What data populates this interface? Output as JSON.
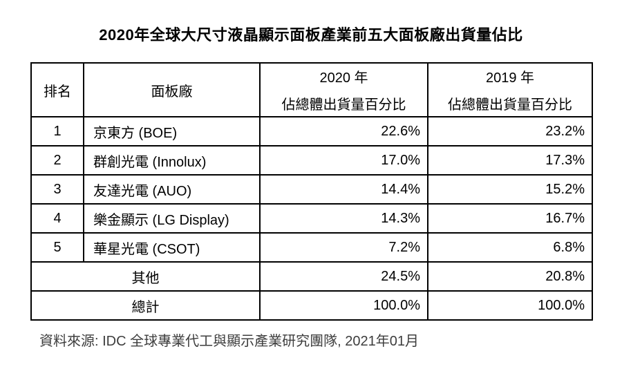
{
  "title": "2020年全球大尺寸液晶顯示面板產業前五大面板廠出貨量佔比",
  "table": {
    "headers": {
      "rank": "排名",
      "maker": "面板廠",
      "col2020_line1": "2020 年",
      "col2020_line2": "佔總體出貨量百分比",
      "col2019_line1": "2019 年",
      "col2019_line2": "佔總體出貨量百分比"
    },
    "rows": [
      {
        "rank": "1",
        "maker": "京東方 (BOE)",
        "y2020": "22.6%",
        "y2019": "23.2%"
      },
      {
        "rank": "2",
        "maker": "群創光電 (Innolux)",
        "y2020": "17.0%",
        "y2019": "17.3%"
      },
      {
        "rank": "3",
        "maker": "友達光電 (AUO)",
        "y2020": "14.4%",
        "y2019": "15.2%"
      },
      {
        "rank": "4",
        "maker": "樂金顯示 (LG Display)",
        "y2020": "14.3%",
        "y2019": "16.7%"
      },
      {
        "rank": "5",
        "maker": "華星光電 (CSOT)",
        "y2020": "7.2%",
        "y2019": "6.8%"
      }
    ],
    "summary_rows": [
      {
        "label": "其他",
        "y2020": "24.5%",
        "y2019": "20.8%"
      },
      {
        "label": "總計",
        "y2020": "100.0%",
        "y2019": "100.0%"
      }
    ]
  },
  "footer": {
    "source": "資料來源: IDC 全球專業代工與顯示產業研究團隊, 2021年01月"
  },
  "colors": {
    "border": "#000000",
    "text": "#000000",
    "source_text": "#3d3d3d",
    "background": "#ffffff"
  },
  "chart_data": {
    "type": "table",
    "title": "2020年全球大尺寸液晶顯示面板產業前五大面板廠出貨量佔比",
    "columns": [
      "排名",
      "面板廠",
      "2020 年 佔總體出貨量百分比",
      "2019 年 佔總體出貨量百分比"
    ],
    "rows": [
      [
        "1",
        "京東方 (BOE)",
        "22.6%",
        "23.2%"
      ],
      [
        "2",
        "群創光電 (Innolux)",
        "17.0%",
        "17.3%"
      ],
      [
        "3",
        "友達光電 (AUO)",
        "14.4%",
        "15.2%"
      ],
      [
        "4",
        "樂金顯示 (LG Display)",
        "14.3%",
        "16.7%"
      ],
      [
        "5",
        "華星光電 (CSOT)",
        "7.2%",
        "6.8%"
      ],
      [
        "",
        "其他",
        "24.5%",
        "20.8%"
      ],
      [
        "",
        "總計",
        "100.0%",
        "100.0%"
      ]
    ],
    "source": "資料來源: IDC 全球專業代工與顯示產業研究團隊, 2021年01月"
  }
}
